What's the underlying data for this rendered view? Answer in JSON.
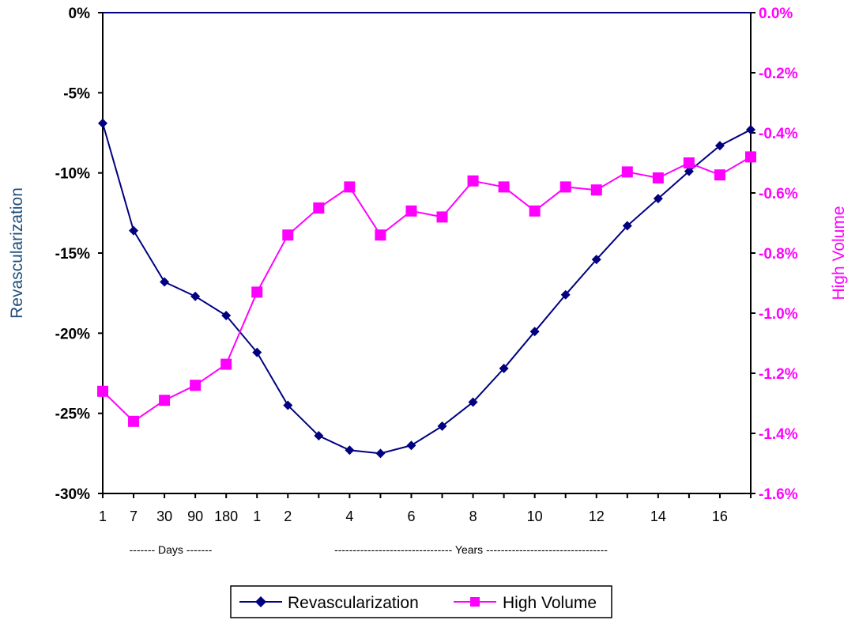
{
  "chart_data": {
    "type": "line",
    "categories": [
      "1",
      "7",
      "30",
      "90",
      "180",
      "1",
      "2",
      "3",
      "4",
      "5",
      "6",
      "7",
      "8",
      "9",
      "10",
      "11",
      "12",
      "13",
      "14",
      "15",
      "16",
      "17"
    ],
    "x_tick_labels": [
      "1",
      "7",
      "30",
      "90",
      "180",
      "1",
      "2",
      "",
      "4",
      "",
      "6",
      "",
      "8",
      "",
      "10",
      "",
      "12",
      "",
      "14",
      "",
      "16",
      ""
    ],
    "period_labels": {
      "days": "------- Days -------",
      "years": "-------------------------------- Years ---------------------------------"
    },
    "y_left": {
      "label": "Revascularization",
      "range": [
        -30,
        0
      ],
      "ticks": [
        "0%",
        "-5%",
        "-10%",
        "-15%",
        "-20%",
        "-25%",
        "-30%"
      ]
    },
    "y_right": {
      "label": "High Volume",
      "range": [
        -1.6,
        0
      ],
      "ticks": [
        "0.0%",
        "-0.2%",
        "-0.4%",
        "-0.6%",
        "-0.8%",
        "-1.0%",
        "-1.2%",
        "-1.4%",
        "-1.6%"
      ]
    },
    "series": [
      {
        "name": "Revascularization",
        "axis": "left",
        "color": "#000080",
        "marker": "diamond",
        "values": [
          -6.9,
          -13.6,
          -16.8,
          -17.7,
          -18.9,
          -21.2,
          -24.5,
          -26.4,
          -27.3,
          -27.5,
          -27.0,
          -25.8,
          -24.3,
          -22.2,
          -19.9,
          -17.6,
          -15.4,
          -13.3,
          -11.6,
          -9.9,
          -8.3,
          -7.3
        ]
      },
      {
        "name": "High Volume",
        "axis": "right",
        "color": "#ff00ff",
        "marker": "square",
        "values": [
          -1.26,
          -1.36,
          -1.29,
          -1.24,
          -1.17,
          -0.93,
          -0.74,
          -0.65,
          -0.58,
          -0.74,
          -0.66,
          -0.68,
          -0.56,
          -0.58,
          -0.66,
          -0.58,
          -0.59,
          -0.53,
          -0.55,
          -0.5,
          -0.54,
          -0.48
        ]
      }
    ],
    "legend_position": "bottom",
    "grid": false
  }
}
